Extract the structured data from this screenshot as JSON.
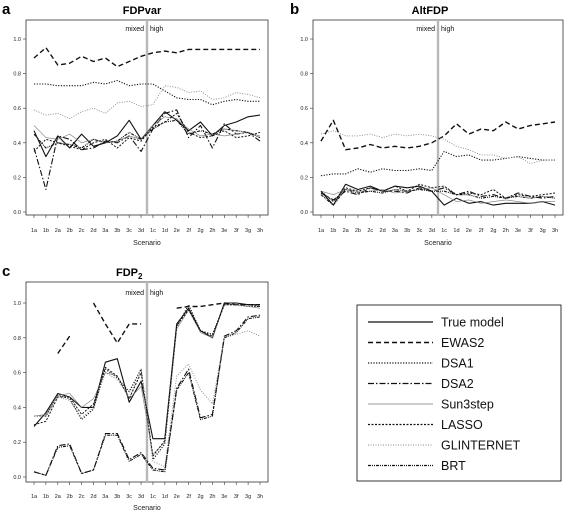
{
  "figure": {
    "legend": {
      "entries": [
        {
          "label": "True model",
          "dash": "solid",
          "width": 1.1,
          "color": "#111111"
        },
        {
          "label": "EWAS2",
          "dash": "5,3",
          "width": 1.4,
          "color": "#111111"
        },
        {
          "label": "DSA1",
          "dash": "1.2,1.5",
          "width": 1.1,
          "color": "#111111"
        },
        {
          "label": "DSA2",
          "dash": "6,2,1.5,2",
          "width": 1.1,
          "color": "#111111"
        },
        {
          "label": "Sun3step",
          "dash": "solid",
          "width": 0.6,
          "color": "#777777"
        },
        {
          "label": "LASSO",
          "dash": "2,1.5",
          "width": 1.0,
          "color": "#111111"
        },
        {
          "label": "GLINTERNET",
          "dash": "1,1.5",
          "width": 0.9,
          "color": "#888888"
        },
        {
          "label": "BRT",
          "dash": "3,1,1,1,1,1",
          "width": 1.1,
          "color": "#111111"
        }
      ]
    }
  },
  "chart_data": [
    {
      "panel": "a",
      "type": "line",
      "title": "FDPvar",
      "xlabel": "Scenario",
      "ylabel": "",
      "region_labels": {
        "left": "mixed",
        "right": "high"
      },
      "divider_after": "3d",
      "categories": [
        "1a",
        "1b",
        "2a",
        "2b",
        "2c",
        "2d",
        "3a",
        "3b",
        "3c",
        "3d",
        "1c",
        "1d",
        "2e",
        "2f",
        "2g",
        "2h",
        "3e",
        "3f",
        "3g",
        "3h"
      ],
      "ylim": [
        0,
        1
      ],
      "yticks": [
        "0.0",
        "0.2",
        "0.4",
        "0.6",
        "0.8",
        "1.0"
      ],
      "ytick_values": [
        0,
        0.2,
        0.4,
        0.6,
        0.8,
        1.0
      ],
      "series": [
        {
          "values": [
            0.47,
            0.32,
            0.44,
            0.37,
            0.45,
            0.38,
            0.4,
            0.44,
            0.53,
            0.42,
            0.5,
            0.58,
            0.53,
            0.47,
            0.52,
            0.44,
            0.5,
            0.52,
            0.55,
            0.56
          ]
        },
        {
          "values": [
            0.89,
            0.95,
            0.85,
            0.86,
            0.9,
            0.87,
            0.89,
            0.84,
            0.87,
            0.9,
            0.92,
            0.93,
            0.92,
            0.94,
            0.94,
            0.94,
            0.94,
            0.94,
            0.94,
            0.94
          ]
        },
        {
          "values": [
            0.74,
            0.74,
            0.73,
            0.73,
            0.73,
            0.75,
            0.74,
            0.76,
            0.73,
            0.74,
            0.74,
            0.7,
            0.66,
            0.65,
            0.65,
            0.62,
            0.64,
            0.65,
            0.64,
            0.64
          ]
        },
        {
          "values": [
            0.37,
            0.13,
            0.44,
            0.42,
            0.36,
            0.37,
            0.41,
            0.4,
            0.44,
            0.35,
            0.48,
            0.57,
            0.59,
            0.43,
            0.5,
            0.37,
            0.51,
            0.45,
            0.46,
            0.41
          ]
        },
        {
          "values": [
            0.5,
            0.43,
            0.42,
            0.45,
            0.4,
            0.42,
            0.4,
            0.41,
            0.44,
            0.42,
            0.5,
            0.55,
            0.54,
            0.48,
            0.44,
            0.45,
            0.44,
            0.45,
            0.46,
            0.44
          ]
        },
        {
          "values": [
            0.35,
            0.42,
            0.4,
            0.38,
            0.36,
            0.4,
            0.42,
            0.37,
            0.43,
            0.41,
            0.49,
            0.52,
            0.57,
            0.46,
            0.43,
            0.44,
            0.47,
            0.43,
            0.44,
            0.46
          ]
        },
        {
          "values": [
            0.59,
            0.56,
            0.57,
            0.54,
            0.58,
            0.6,
            0.57,
            0.63,
            0.64,
            0.61,
            0.62,
            0.73,
            0.72,
            0.69,
            0.7,
            0.65,
            0.66,
            0.69,
            0.68,
            0.66
          ]
        },
        {
          "values": [
            0.45,
            0.37,
            0.4,
            0.39,
            0.37,
            0.42,
            0.4,
            0.41,
            0.46,
            0.42,
            0.48,
            0.52,
            0.53,
            0.45,
            0.47,
            0.45,
            0.48,
            0.47,
            0.46,
            0.43
          ]
        }
      ]
    },
    {
      "panel": "b",
      "type": "line",
      "title": "AltFDP",
      "xlabel": "Scenario",
      "ylabel": "",
      "region_labels": {
        "left": "mixed",
        "right": "high"
      },
      "divider_after": "3d",
      "categories": [
        "1a",
        "1b",
        "2a",
        "2b",
        "2c",
        "2d",
        "3a",
        "3b",
        "3c",
        "3d",
        "1c",
        "1d",
        "2e",
        "2f",
        "2g",
        "2h",
        "3e",
        "3f",
        "3g",
        "3h"
      ],
      "ylim": [
        0,
        1
      ],
      "yticks": [
        "0.0",
        "0.2",
        "0.4",
        "0.6",
        "0.8",
        "1.0"
      ],
      "ytick_values": [
        0,
        0.2,
        0.4,
        0.6,
        0.8,
        1.0
      ],
      "series": [
        {
          "values": [
            0.12,
            0.04,
            0.16,
            0.13,
            0.15,
            0.12,
            0.15,
            0.14,
            0.15,
            0.12,
            0.04,
            0.08,
            0.05,
            0.06,
            0.04,
            0.05,
            0.05,
            0.05,
            0.06,
            0.04
          ]
        },
        {
          "values": [
            0.41,
            0.53,
            0.36,
            0.37,
            0.39,
            0.37,
            0.38,
            0.37,
            0.38,
            0.4,
            0.44,
            0.51,
            0.45,
            0.48,
            0.47,
            0.52,
            0.48,
            0.5,
            0.51,
            0.52
          ]
        },
        {
          "values": [
            0.21,
            0.22,
            0.22,
            0.25,
            0.23,
            0.25,
            0.24,
            0.24,
            0.25,
            0.24,
            0.35,
            0.32,
            0.33,
            0.3,
            0.3,
            0.31,
            0.32,
            0.31,
            0.3,
            0.3
          ]
        },
        {
          "values": [
            0.11,
            0.07,
            0.12,
            0.1,
            0.14,
            0.12,
            0.12,
            0.11,
            0.14,
            0.12,
            0.14,
            0.1,
            0.12,
            0.09,
            0.1,
            0.08,
            0.11,
            0.09,
            0.08,
            0.09
          ]
        },
        {
          "values": [
            0.12,
            0.1,
            0.13,
            0.12,
            0.12,
            0.13,
            0.11,
            0.12,
            0.13,
            0.14,
            0.1,
            0.06,
            0.07,
            0.05,
            0.06,
            0.07,
            0.06,
            0.05,
            0.06,
            0.06
          ]
        },
        {
          "values": [
            0.12,
            0.06,
            0.14,
            0.12,
            0.14,
            0.12,
            0.15,
            0.12,
            0.16,
            0.14,
            0.15,
            0.1,
            0.11,
            0.1,
            0.13,
            0.08,
            0.1,
            0.09,
            0.1,
            0.11
          ]
        },
        {
          "values": [
            0.45,
            0.47,
            0.44,
            0.44,
            0.45,
            0.43,
            0.45,
            0.44,
            0.45,
            0.44,
            0.42,
            0.38,
            0.36,
            0.33,
            0.33,
            0.31,
            0.32,
            0.28,
            0.3,
            0.3
          ]
        },
        {
          "values": [
            0.1,
            0.04,
            0.13,
            0.11,
            0.12,
            0.11,
            0.13,
            0.12,
            0.13,
            0.12,
            0.12,
            0.1,
            0.1,
            0.08,
            0.09,
            0.08,
            0.09,
            0.08,
            0.09,
            0.08
          ]
        }
      ]
    },
    {
      "panel": "c",
      "type": "line",
      "title": "FDP",
      "title_subscript": "2",
      "xlabel": "Scenario",
      "ylabel": "",
      "region_labels": {
        "left": "mixed",
        "right": "high"
      },
      "divider_after": "3d",
      "categories": [
        "1a",
        "1b",
        "2a",
        "2b",
        "2c",
        "2d",
        "3a",
        "3b",
        "3c",
        "3d",
        "1c",
        "1d",
        "2e",
        "2f",
        "2g",
        "2h",
        "3e",
        "3f",
        "3g",
        "3h"
      ],
      "ylim": [
        0,
        1
      ],
      "yticks": [
        "0.0",
        "0.2",
        "0.4",
        "0.6",
        "0.8",
        "1.0"
      ],
      "ytick_values": [
        0,
        0.2,
        0.4,
        0.6,
        0.8,
        1.0
      ],
      "series": [
        {
          "values": [
            0.29,
            0.37,
            0.48,
            0.46,
            0.4,
            0.4,
            0.66,
            0.68,
            0.43,
            0.55,
            0.22,
            0.22,
            0.88,
            0.97,
            0.84,
            0.8,
            1.0,
            1.0,
            0.99,
            0.99
          ]
        },
        {
          "values": [
            null,
            null,
            0.71,
            0.81,
            null,
            1.0,
            0.88,
            0.77,
            0.88,
            0.88,
            null,
            null,
            0.97,
            0.98,
            0.98,
            0.99,
            1.0,
            0.99,
            0.99,
            0.99
          ]
        },
        {
          "values": [
            0.35,
            0.35,
            0.47,
            0.45,
            0.33,
            0.39,
            0.62,
            0.57,
            0.49,
            0.62,
            0.1,
            0.19,
            0.86,
            0.99,
            0.84,
            0.82,
            0.99,
            0.99,
            0.98,
            0.98
          ]
        },
        {
          "values": [
            0.03,
            0.01,
            0.18,
            0.19,
            0.02,
            0.04,
            0.25,
            0.25,
            0.1,
            0.14,
            0.05,
            0.04,
            0.51,
            0.62,
            0.34,
            0.36,
            0.81,
            0.84,
            0.92,
            0.93
          ]
        },
        {
          "values": [
            0.35,
            0.36,
            0.47,
            0.48,
            0.4,
            0.45,
            0.6,
            0.58,
            0.45,
            0.52,
            0.13,
            0.2,
            0.85,
            0.96,
            0.83,
            0.8,
            0.99,
            0.99,
            0.98,
            0.97
          ]
        },
        {
          "values": [
            0.3,
            0.32,
            0.46,
            0.46,
            0.36,
            0.42,
            0.63,
            0.58,
            0.45,
            0.6,
            0.12,
            0.21,
            0.87,
            0.96,
            0.84,
            0.81,
            0.99,
            0.99,
            0.99,
            0.98
          ]
        },
        {
          "values": [
            0.35,
            0.35,
            0.46,
            0.44,
            0.34,
            0.4,
            0.6,
            0.56,
            0.46,
            0.62,
            0.09,
            0.06,
            0.58,
            0.65,
            0.5,
            0.42,
            0.8,
            0.82,
            0.84,
            0.81
          ]
        },
        {
          "values": [
            0.03,
            0.01,
            0.17,
            0.18,
            0.02,
            0.04,
            0.24,
            0.24,
            0.09,
            0.13,
            0.04,
            0.03,
            0.5,
            0.6,
            0.33,
            0.35,
            0.8,
            0.83,
            0.91,
            0.92
          ]
        }
      ]
    }
  ]
}
